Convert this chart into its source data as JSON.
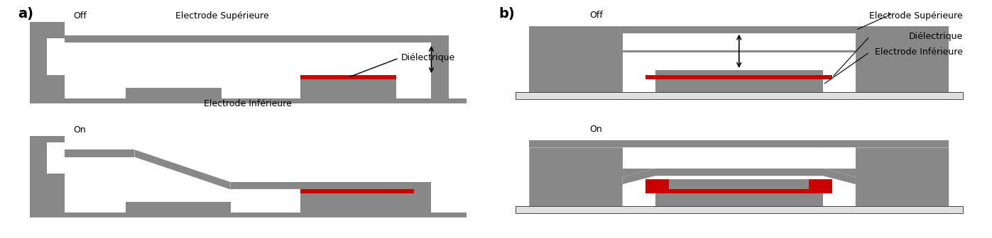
{
  "gray": "#888888",
  "dark_gray": "#666666",
  "light_gray": "#c8c8c8",
  "lighter_gray": "#e0e0e0",
  "red": "#cc0000",
  "white": "#ffffff",
  "black": "#000000",
  "bg": "#ffffff",
  "label_a": "a)",
  "label_b": "b)",
  "off_text": "Off",
  "on_text": "On",
  "elec_sup": "Electrode Supérieure",
  "elec_inf": "Electrode Inférieure",
  "dielec": "Diélectrique"
}
